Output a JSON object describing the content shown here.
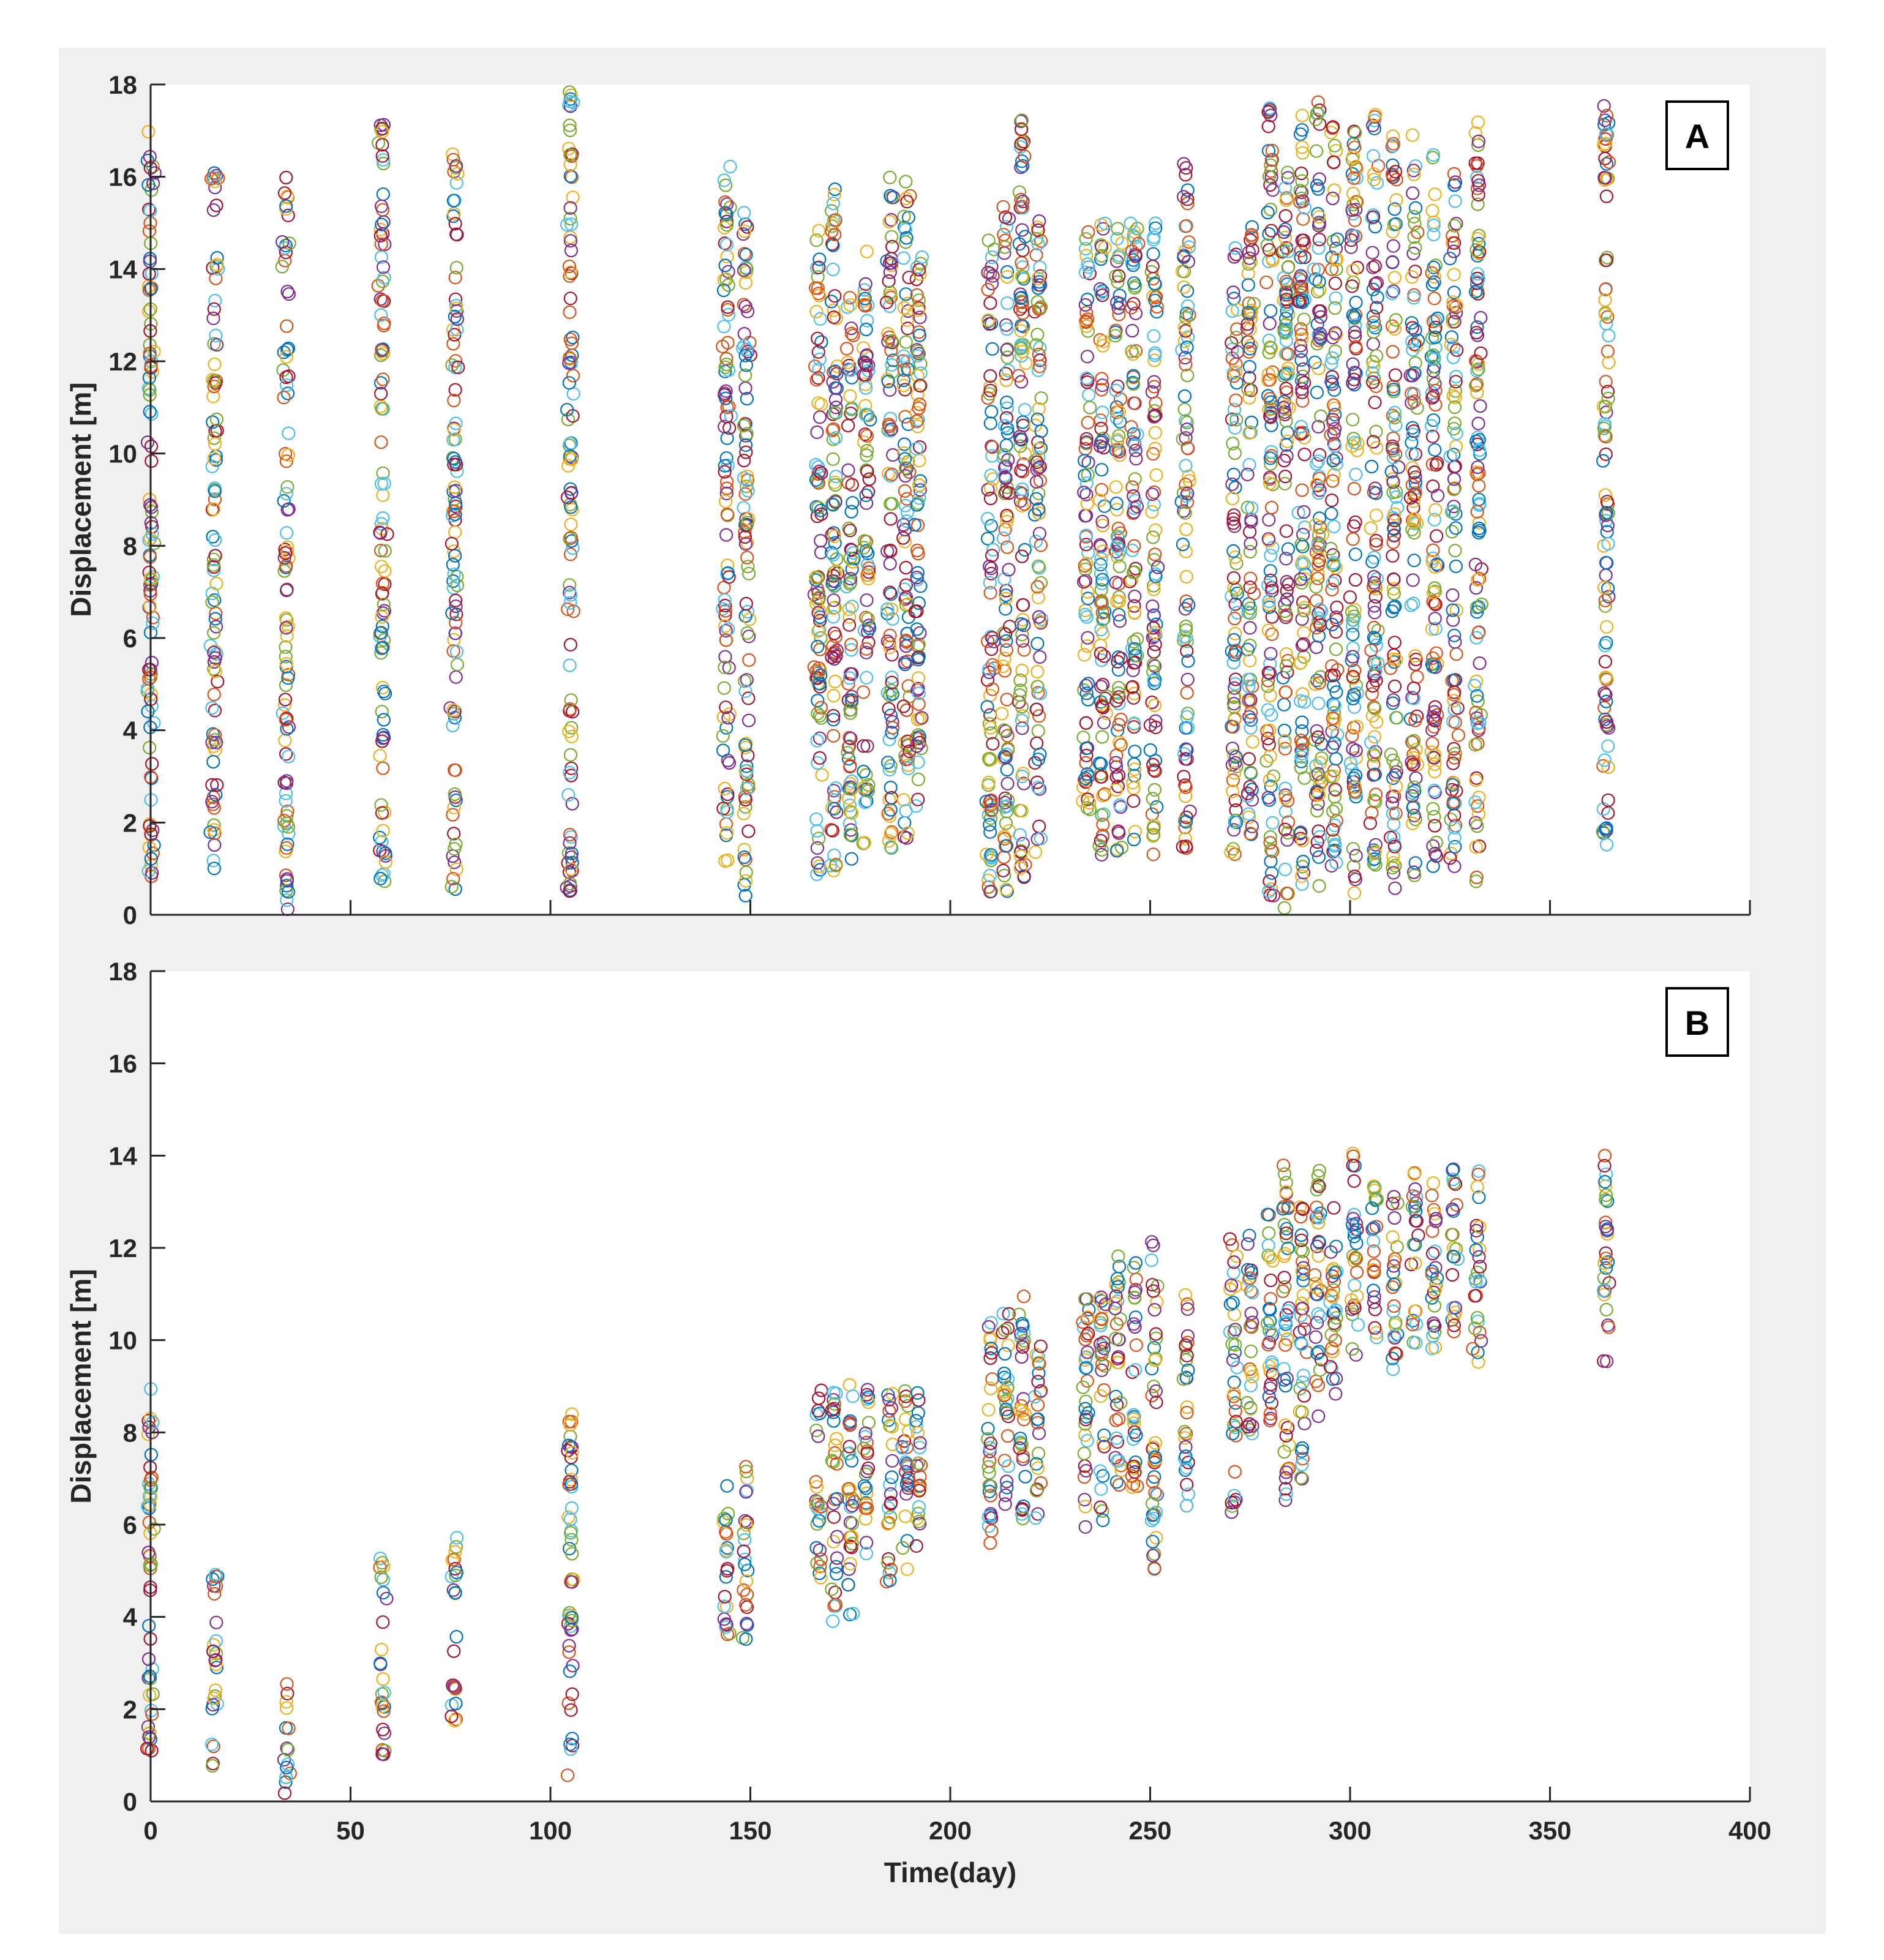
{
  "chart_data": [
    {
      "type": "scatter",
      "panel_label": "A",
      "title": "",
      "xlabel": "",
      "ylabel": "Displacement [m]",
      "xlim": [
        0,
        400
      ],
      "ylim": [
        0,
        18
      ],
      "xticks": [
        0,
        50,
        100,
        150,
        200,
        250,
        300,
        350,
        400
      ],
      "yticks": [
        0,
        2,
        4,
        6,
        8,
        10,
        12,
        14,
        16,
        18
      ],
      "show_x_tick_labels": false,
      "grid": false,
      "legend": "none",
      "marker": "open-circle",
      "sample_times": [
        0,
        16,
        34,
        58,
        76,
        105,
        144,
        149,
        167,
        171,
        175,
        179,
        185,
        189,
        192,
        210,
        214,
        218,
        222,
        234,
        238,
        242,
        246,
        251,
        259,
        271,
        275,
        280,
        284,
        288,
        292,
        296,
        301,
        306,
        311,
        316,
        321,
        326,
        332,
        364
      ],
      "sample_ranges": [
        [
          0.5,
          17.2
        ],
        [
          0.5,
          16.1
        ],
        [
          0.1,
          16.0
        ],
        [
          0.7,
          17.3
        ],
        [
          0.5,
          17.0
        ],
        [
          0.5,
          17.9
        ],
        [
          1.0,
          16.5
        ],
        [
          0.3,
          15.5
        ],
        [
          0.8,
          15.5
        ],
        [
          0.8,
          15.9
        ],
        [
          1.2,
          13.8
        ],
        [
          1.5,
          14.4
        ],
        [
          1.2,
          16.1
        ],
        [
          1.5,
          15.9
        ],
        [
          2.0,
          14.7
        ],
        [
          0.5,
          14.9
        ],
        [
          0.5,
          15.5
        ],
        [
          0.5,
          17.7
        ],
        [
          1.3,
          15.1
        ],
        [
          2.2,
          15.0
        ],
        [
          1.3,
          15.0
        ],
        [
          1.3,
          14.9
        ],
        [
          1.4,
          15.0
        ],
        [
          1.3,
          15.0
        ],
        [
          1.4,
          16.6
        ],
        [
          1.3,
          14.7
        ],
        [
          1.5,
          15.0
        ],
        [
          0.3,
          17.5
        ],
        [
          0.0,
          16.3
        ],
        [
          0.6,
          17.6
        ],
        [
          0.3,
          17.7
        ],
        [
          0.6,
          17.1
        ],
        [
          0.4,
          17.0
        ],
        [
          0.9,
          17.4
        ],
        [
          0.5,
          16.9
        ],
        [
          0.8,
          17.1
        ],
        [
          1.0,
          16.6
        ],
        [
          1.0,
          16.3
        ],
        [
          0.7,
          17.4
        ],
        [
          1.4,
          17.6
        ]
      ],
      "series_colors": [
        "#0072BD",
        "#D95319",
        "#EDB120",
        "#7E2F8E",
        "#77AC30",
        "#4DBEEE",
        "#A2142F"
      ]
    },
    {
      "type": "scatter",
      "panel_label": "B",
      "title": "",
      "xlabel": "Time(day)",
      "ylabel": "Displacement [m]",
      "xlim": [
        0,
        400
      ],
      "ylim": [
        0,
        18
      ],
      "xticks": [
        0,
        50,
        100,
        150,
        200,
        250,
        300,
        350,
        400
      ],
      "yticks": [
        0,
        2,
        4,
        6,
        8,
        10,
        12,
        14,
        16,
        18
      ],
      "show_x_tick_labels": true,
      "grid": false,
      "legend": "none",
      "marker": "open-circle",
      "sample_times": [
        0,
        16,
        34,
        58,
        76,
        105,
        144,
        149,
        167,
        171,
        175,
        179,
        185,
        189,
        192,
        210,
        214,
        218,
        222,
        234,
        238,
        242,
        246,
        251,
        259,
        271,
        275,
        280,
        284,
        288,
        292,
        296,
        301,
        306,
        311,
        316,
        321,
        326,
        332,
        364
      ],
      "sample_ranges": [
        [
          1.1,
          9.2
        ],
        [
          0.6,
          5.1
        ],
        [
          0.1,
          2.7
        ],
        [
          0.9,
          5.3
        ],
        [
          1.7,
          5.8
        ],
        [
          0.5,
          8.8
        ],
        [
          3.6,
          7.2
        ],
        [
          3.5,
          7.3
        ],
        [
          4.7,
          9.0
        ],
        [
          3.9,
          8.9
        ],
        [
          4.0,
          9.2
        ],
        [
          5.0,
          9.1
        ],
        [
          4.7,
          8.9
        ],
        [
          4.9,
          9.1
        ],
        [
          5.5,
          9.1
        ],
        [
          5.6,
          10.6
        ],
        [
          6.2,
          11.0
        ],
        [
          6.0,
          11.0
        ],
        [
          6.1,
          9.9
        ],
        [
          5.6,
          11.1
        ],
        [
          6.0,
          11.0
        ],
        [
          6.6,
          12.1
        ],
        [
          6.8,
          11.8
        ],
        [
          5.0,
          12.2
        ],
        [
          6.3,
          11.0
        ],
        [
          6.2,
          12.2
        ],
        [
          7.8,
          12.3
        ],
        [
          8.0,
          13.0
        ],
        [
          6.5,
          14.0
        ],
        [
          6.9,
          13.1
        ],
        [
          8.2,
          13.7
        ],
        [
          8.7,
          13.4
        ],
        [
          9.3,
          14.1
        ],
        [
          9.4,
          13.4
        ],
        [
          9.3,
          13.3
        ],
        [
          9.9,
          13.8
        ],
        [
          9.8,
          14.0
        ],
        [
          10.1,
          13.9
        ],
        [
          9.5,
          14.0
        ],
        [
          9.4,
          14.4
        ]
      ],
      "series_colors": [
        "#0072BD",
        "#D95319",
        "#EDB120",
        "#7E2F8E",
        "#77AC30",
        "#4DBEEE",
        "#A2142F"
      ]
    }
  ]
}
